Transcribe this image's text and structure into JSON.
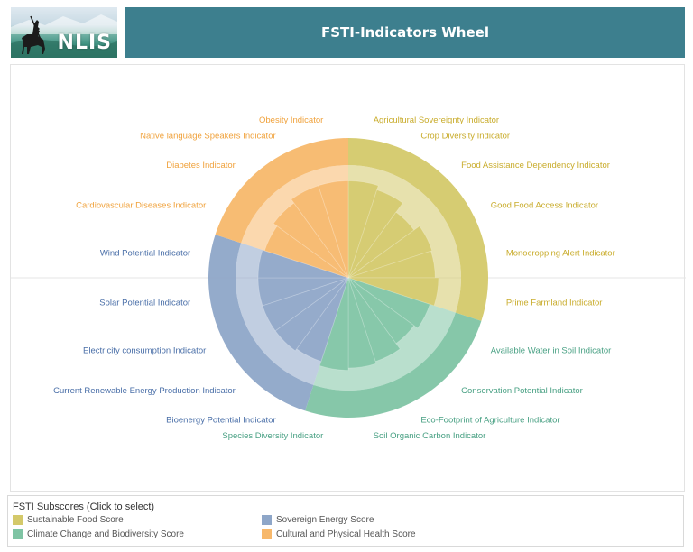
{
  "header": {
    "logo_text": "NLIS",
    "title": "FSTI-Indicators Wheel"
  },
  "chart_data": {
    "type": "pie",
    "subtype": "radial wheel of indicators grouped by subscore",
    "groups": [
      {
        "name": "Sustainable Food Score",
        "color": "#d4c96a",
        "indicators": [
          {
            "label": "Agricultural Sovereignty Indicator",
            "value": 0.86
          },
          {
            "label": "Crop Diversity Indicator",
            "value": 0.82
          },
          {
            "label": "Food Assistance Dependency Indicator",
            "value": 0.72
          },
          {
            "label": "Good Food Access Indicator",
            "value": 0.78
          },
          {
            "label": "Monocropping Alert Indicator",
            "value": 0.77
          },
          {
            "label": "Prime Farmland Indicator",
            "value": 0.8
          }
        ]
      },
      {
        "name": "Climate Change and Biodiversity Score",
        "color": "#7fc4a4",
        "indicators": [
          {
            "label": "Available Water in Soil Indicator",
            "value": 0.76
          },
          {
            "label": "Conservation Potential Indicator",
            "value": 0.72
          },
          {
            "label": "Eco-Footprint of Agriculture Indicator",
            "value": 0.78
          },
          {
            "label": "Soil Organic Carbon Indicator",
            "value": 0.8
          },
          {
            "label": "Species Diversity Indicator",
            "value": 0.82
          }
        ]
      },
      {
        "name": "Sovereign Energy Score",
        "color": "#8ea6c8",
        "indicators": [
          {
            "label": "Bioenergy Potential Indicator",
            "value": 0.78
          },
          {
            "label": "Current Renewable Energy Production Indicator",
            "value": 0.8
          },
          {
            "label": "Electricity consumption Indicator",
            "value": 0.8
          },
          {
            "label": "Solar Potential Indicator",
            "value": 0.8
          },
          {
            "label": "Wind Potential Indicator",
            "value": 0.8
          }
        ]
      },
      {
        "name": "Cultural and Physical Health Score",
        "color": "#f7b86b",
        "indicators": [
          {
            "label": "Cardiovascular Diseases Indicator",
            "value": 0.78
          },
          {
            "label": "Diabetes Indicator",
            "value": 0.82
          },
          {
            "label": "Native language Speakers Indicator",
            "value": 0.86
          },
          {
            "label": "Obesity Indicator",
            "value": 0.86
          }
        ]
      }
    ],
    "label_colors": {
      "Sustainable Food Score": "#c9ac2c",
      "Climate Change and Biodiversity Score": "#48a083",
      "Sovereign Energy Score": "#4a6fa8",
      "Cultural and Physical Health Score": "#f0a23c"
    },
    "grid": false
  },
  "legend": {
    "title": "FSTI Subscores (Click to select)",
    "items": [
      {
        "label": "Sustainable Food Score",
        "color": "#d4c96a"
      },
      {
        "label": "Sovereign Energy Score",
        "color": "#8ea6c8"
      },
      {
        "label": "Climate Change and Biodiversity Score",
        "color": "#7fc4a4"
      },
      {
        "label": "Cultural and Physical Health Score",
        "color": "#f7b86b"
      }
    ]
  }
}
